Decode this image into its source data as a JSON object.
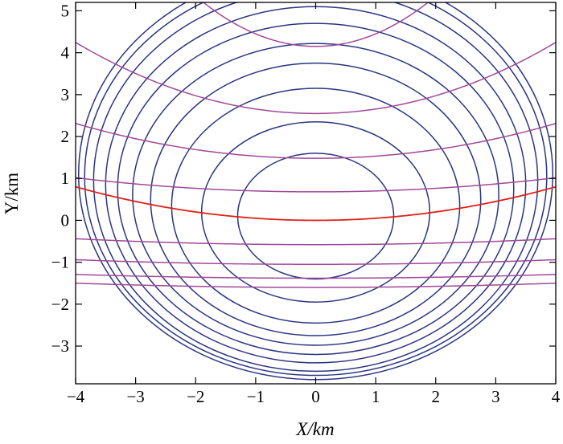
{
  "chart_data": {
    "type": "line",
    "xlabel": "X/km",
    "ylabel": "Y/km",
    "xlim": [
      -4,
      4
    ],
    "ylim": [
      -3.9,
      5.2
    ],
    "x_ticks": [
      -4,
      -3,
      -2,
      -1,
      0,
      1,
      2,
      3,
      4
    ],
    "y_ticks": [
      -3,
      -2,
      -1,
      0,
      1,
      2,
      3,
      4,
      5
    ],
    "grid": false,
    "colors": {
      "circle": "#2a3580",
      "curve": "#a0489a",
      "highlight": "#e0201c",
      "axis": "#000000"
    },
    "series": [
      {
        "kind": "closed-contours",
        "color_key": "circle",
        "center_x": [
          0,
          0,
          0,
          0,
          0,
          0,
          0,
          0,
          0,
          0
        ],
        "center_y": [
          0.1,
          0.2,
          0.35,
          0.5,
          0.62,
          0.75,
          0.85,
          0.95,
          1.05,
          1.1
        ],
        "radius_x": [
          1.3,
          1.9,
          2.4,
          2.75,
          3.05,
          3.3,
          3.5,
          3.7,
          3.85,
          3.95
        ],
        "radius_y": [
          1.5,
          2.15,
          2.8,
          3.25,
          3.6,
          3.95,
          4.25,
          4.55,
          4.75,
          4.9
        ]
      },
      {
        "kind": "upward-curves",
        "color_key": "curve",
        "vertex_y": [
          4.15,
          2.55,
          1.48,
          0.68
        ],
        "curvature": [
          0.3,
          0.106,
          0.052,
          0.021
        ]
      },
      {
        "kind": "upward-curves",
        "color_key": "highlight",
        "vertex_y": [
          0.0
        ],
        "curvature": [
          0.05
        ]
      },
      {
        "kind": "upward-curves",
        "color_key": "curve",
        "vertex_y": [
          -0.58,
          -1.05,
          -1.38,
          -1.6
        ],
        "curvature": [
          0.0088,
          0.0069,
          0.0056,
          0.0063
        ]
      }
    ]
  }
}
